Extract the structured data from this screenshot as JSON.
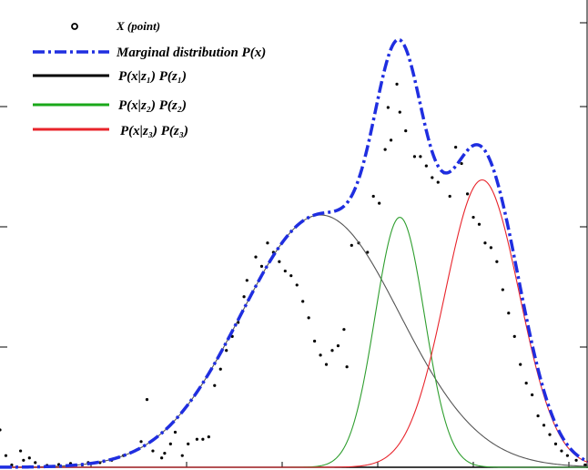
{
  "chart_data": {
    "type": "line",
    "title": "",
    "xlabel": "",
    "ylabel": "",
    "xlim": [
      0,
      100
    ],
    "ylim": [
      0,
      100
    ],
    "grid": false,
    "legend_position": "top-left",
    "legend": [
      {
        "label": "X (point)",
        "style": "marker",
        "color": "#000000"
      },
      {
        "label": "Marginal distribution P(x)",
        "style": "dash-dot",
        "color": "#1f2ee0"
      },
      {
        "label": "P(x|z₁) P(z₁)",
        "style": "solid",
        "color": "#000000"
      },
      {
        "label": "P(x|z₂) P(z₂)",
        "style": "solid",
        "color": "#1aa81a"
      },
      {
        "label": "P(x|z₃) P(z₃)",
        "style": "solid",
        "color": "#e8242b"
      }
    ],
    "components": [
      {
        "mean": 54.5,
        "sd": 13.5,
        "peak": 54.0,
        "color": "#555555"
      },
      {
        "mean": 68.0,
        "sd": 4.2,
        "peak": 53.5,
        "color": "#2e9e2e"
      },
      {
        "mean": 82.0,
        "sd": 6.3,
        "peak": 61.5,
        "color": "#e8242b"
      }
    ],
    "points": [
      [
        0.0,
        8
      ],
      [
        1.0,
        2.5
      ],
      [
        2.0,
        0.5
      ],
      [
        3.5,
        3.5
      ],
      [
        4.0,
        1.5
      ],
      [
        5.0,
        2
      ],
      [
        6.0,
        1
      ],
      [
        8.0,
        0.4
      ],
      [
        10.0,
        0.6
      ],
      [
        12.0,
        0.8
      ],
      [
        14.0,
        0.5
      ],
      [
        15.0,
        1
      ],
      [
        17.0,
        1
      ],
      [
        19.0,
        1.5
      ],
      [
        21.0,
        2.5
      ],
      [
        24.0,
        5.5
      ],
      [
        25.0,
        14.5
      ],
      [
        26.0,
        3.5
      ],
      [
        27.5,
        2
      ],
      [
        28.0,
        3
      ],
      [
        29.0,
        5
      ],
      [
        29.8,
        7.5
      ],
      [
        31.0,
        2.5
      ],
      [
        32.0,
        5
      ],
      [
        33.5,
        6
      ],
      [
        34.5,
        6
      ],
      [
        35.5,
        6.5
      ],
      [
        36.5,
        17.5
      ],
      [
        37.5,
        21
      ],
      [
        38.5,
        25
      ],
      [
        39.5,
        28
      ],
      [
        40.5,
        31
      ],
      [
        41.5,
        36.5
      ],
      [
        42.0,
        40
      ],
      [
        43.5,
        45
      ],
      [
        44.5,
        43
      ],
      [
        45.5,
        48
      ],
      [
        46.5,
        46
      ],
      [
        47.5,
        44
      ],
      [
        48.5,
        42
      ],
      [
        49.5,
        41
      ],
      [
        50.5,
        39
      ],
      [
        51.5,
        35.5
      ],
      [
        52.5,
        32
      ],
      [
        53.5,
        27
      ],
      [
        54.5,
        24
      ],
      [
        55.5,
        22
      ],
      [
        56.5,
        25
      ],
      [
        57.5,
        26
      ],
      [
        58.5,
        29.5
      ],
      [
        59.0,
        21.5
      ],
      [
        59.8,
        47.5
      ],
      [
        61.0,
        48
      ],
      [
        62.5,
        46
      ],
      [
        63.5,
        58
      ],
      [
        64.5,
        56.5
      ],
      [
        65.5,
        68
      ],
      [
        66.0,
        77
      ],
      [
        66.5,
        70
      ],
      [
        67.5,
        82
      ],
      [
        68.0,
        76
      ],
      [
        69.0,
        72
      ],
      [
        70.5,
        66.5
      ],
      [
        71.5,
        66.5
      ],
      [
        72.5,
        64.5
      ],
      [
        73.5,
        62
      ],
      [
        74.5,
        61
      ],
      [
        75.5,
        63
      ],
      [
        76.5,
        58
      ],
      [
        77.5,
        68.5
      ],
      [
        78.5,
        65
      ],
      [
        79.5,
        58.5
      ],
      [
        80.5,
        53.5
      ],
      [
        81.5,
        52
      ],
      [
        82.5,
        48
      ],
      [
        83.5,
        47
      ],
      [
        84.5,
        44
      ],
      [
        85.5,
        38
      ],
      [
        86.5,
        33
      ],
      [
        87.5,
        28
      ],
      [
        88.5,
        22
      ],
      [
        89.5,
        18
      ],
      [
        90.5,
        15.5
      ],
      [
        91.5,
        11
      ],
      [
        92.5,
        9
      ],
      [
        93.5,
        7
      ],
      [
        94.5,
        5
      ],
      [
        95.5,
        3.5
      ],
      [
        96.5,
        2.5
      ],
      [
        98.0,
        1.5
      ],
      [
        99.5,
        0.5
      ]
    ]
  }
}
